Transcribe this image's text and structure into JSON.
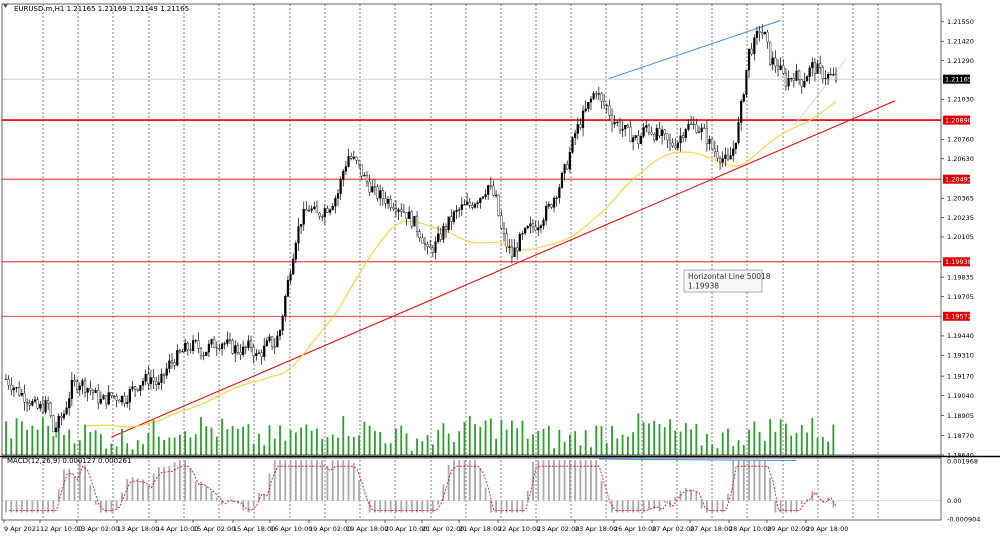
{
  "chart_data": {
    "type": "candlestick",
    "symbol_info": "EURUSD.m,H1  1.21165 1.21169 1.21149 1.21165",
    "price_axis": {
      "ticks": [
        1.2155,
        1.2142,
        1.2129,
        1.2103,
        1.2076,
        1.2063,
        1.20365,
        1.20235,
        1.20105,
        1.19835,
        1.19705,
        1.1944,
        1.1931,
        1.1917,
        1.1904,
        1.18905,
        1.1877,
        1.1864
      ],
      "tick_labels": [
        "1.21550",
        "1.21420",
        "1.21290",
        "1.21030",
        "1.20760",
        "1.20630",
        "1.20365",
        "1.20235",
        "1.20105",
        "1.19835",
        "1.19705",
        "1.19440",
        "1.19310",
        "1.19170",
        "1.19040",
        "1.18905",
        "1.18770",
        "1.18640"
      ],
      "ylim": [
        1.1864,
        1.2167
      ]
    },
    "current_price": {
      "value": 1.21165,
      "label": "1.21165"
    },
    "horizontal_lines": [
      {
        "value": 1.2089,
        "label": "1.20890",
        "color": "#e00000"
      },
      {
        "value": 1.20493,
        "label": "1.20493",
        "color": "#e00000"
      },
      {
        "value": 1.19938,
        "label": "1.19938",
        "color": "#e00000"
      },
      {
        "value": 1.19572,
        "label": "1.19572",
        "color": "#e00000"
      }
    ],
    "time_axis": {
      "labels": [
        "9 Apr 2021",
        "12 Apr 10:00",
        "13 Apr 02:00",
        "13 Apr 18:00",
        "14 Apr 10:00",
        "15 Apr 02:00",
        "15 Apr 18:00",
        "16 Apr 10:00",
        "19 Apr 02:00",
        "19 Apr 18:00",
        "20 Apr 10:00",
        "21 Apr 02:00",
        "21 Apr 18:00",
        "22 Apr 10:00",
        "23 Apr 02:00",
        "23 Apr 18:00",
        "26 Apr 10:00",
        "27 Apr 02:00",
        "27 Apr 18:00",
        "28 Apr 10:00",
        "29 Apr 02:00",
        "29 Apr 18:00"
      ]
    },
    "price_path": [
      [
        0,
        1.1915
      ],
      [
        4,
        1.1908
      ],
      [
        8,
        1.1902
      ],
      [
        12,
        1.1895
      ],
      [
        16,
        1.1898
      ],
      [
        18,
        1.188
      ],
      [
        22,
        1.1892
      ],
      [
        25,
        1.191
      ],
      [
        28,
        1.1913
      ],
      [
        32,
        1.1908
      ],
      [
        36,
        1.19
      ],
      [
        40,
        1.1904
      ],
      [
        45,
        1.1902
      ],
      [
        48,
        1.1908
      ],
      [
        52,
        1.1914
      ],
      [
        55,
        1.1916
      ],
      [
        58,
        1.191
      ],
      [
        60,
        1.1918
      ],
      [
        62,
        1.1925
      ],
      [
        65,
        1.193
      ],
      [
        68,
        1.1935
      ],
      [
        72,
        1.1938
      ],
      [
        75,
        1.1933
      ],
      [
        78,
        1.1938
      ],
      [
        82,
        1.194
      ],
      [
        86,
        1.1936
      ],
      [
        90,
        1.1934
      ],
      [
        93,
        1.1938
      ],
      [
        95,
        1.193
      ],
      [
        98,
        1.1935
      ],
      [
        100,
        1.194
      ],
      [
        102,
        1.1938
      ],
      [
        104,
        1.1948
      ],
      [
        106,
        1.197
      ],
      [
        108,
        1.199
      ],
      [
        110,
        1.201
      ],
      [
        112,
        1.2022
      ],
      [
        115,
        1.203
      ],
      [
        118,
        1.2025
      ],
      [
        120,
        1.2028
      ],
      [
        123,
        1.2032
      ],
      [
        126,
        1.204
      ],
      [
        128,
        1.2055
      ],
      [
        130,
        1.2065
      ],
      [
        133,
        1.206
      ],
      [
        136,
        1.205
      ],
      [
        140,
        1.204
      ],
      [
        145,
        1.2035
      ],
      [
        150,
        1.203
      ],
      [
        155,
        1.202
      ],
      [
        158,
        1.201
      ],
      [
        160,
        1.2
      ],
      [
        163,
        1.2005
      ],
      [
        166,
        1.2015
      ],
      [
        170,
        1.2025
      ],
      [
        173,
        1.203
      ],
      [
        176,
        1.2032
      ],
      [
        180,
        1.2038
      ],
      [
        183,
        1.2045
      ],
      [
        186,
        1.2035
      ],
      [
        188,
        1.2015
      ],
      [
        190,
        1.2005
      ],
      [
        192,
        1.1998
      ],
      [
        195,
        1.2008
      ],
      [
        198,
        1.2015
      ],
      [
        202,
        1.202
      ],
      [
        206,
        1.203
      ],
      [
        210,
        1.2045
      ],
      [
        213,
        1.206
      ],
      [
        216,
        1.208
      ],
      [
        220,
        1.2095
      ],
      [
        224,
        1.211
      ],
      [
        226,
        1.21
      ],
      [
        228,
        1.2098
      ],
      [
        230,
        1.209
      ],
      [
        233,
        1.2085
      ],
      [
        236,
        1.208
      ],
      [
        240,
        1.2075
      ],
      [
        243,
        1.2085
      ],
      [
        246,
        1.208
      ],
      [
        249,
        1.2078
      ],
      [
        252,
        1.2072
      ],
      [
        255,
        1.2075
      ],
      [
        258,
        1.2085
      ],
      [
        262,
        1.2085
      ],
      [
        265,
        1.208
      ],
      [
        268,
        1.207
      ],
      [
        271,
        1.2065
      ],
      [
        274,
        1.206
      ],
      [
        276,
        1.207
      ],
      [
        278,
        1.2085
      ],
      [
        280,
        1.211
      ],
      [
        282,
        1.2135
      ],
      [
        284,
        1.214
      ],
      [
        286,
        1.215
      ],
      [
        288,
        1.2145
      ],
      [
        290,
        1.213
      ],
      [
        293,
        1.2125
      ],
      [
        296,
        1.2115
      ],
      [
        299,
        1.212
      ],
      [
        302,
        1.2115
      ],
      [
        306,
        1.2125
      ],
      [
        310,
        1.212
      ],
      [
        313,
        1.2118
      ],
      [
        315,
        1.21165
      ]
    ],
    "indicator": {
      "name": "MACD(12,26,9) 0.000127 0.000261",
      "ticks": [
        "0.001968",
        "0.00",
        "-0.000904"
      ],
      "ylim": [
        -0.000904,
        0.001968
      ]
    },
    "annotation": {
      "line1": "Horizontal Line 50018",
      "line2": "1.19938"
    },
    "grid": true,
    "colors": {
      "bull": "#000000",
      "bear": "#000000",
      "volume": "#2aa02a",
      "ma": "#f5d547",
      "trendline": "#e00000",
      "channel": "#3a8dde",
      "macd_hist": "#a9a9a9",
      "macd_signal": "#e00000"
    }
  }
}
